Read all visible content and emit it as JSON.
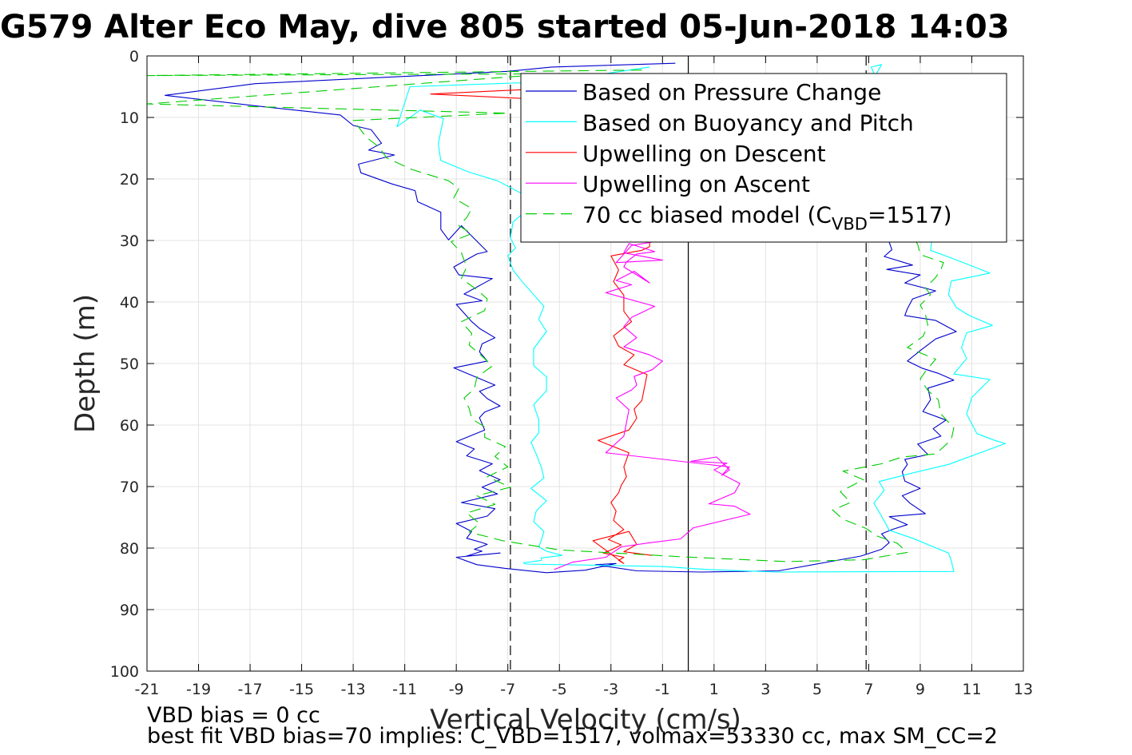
{
  "chart_data": {
    "type": "line",
    "title": "G579 Alter Eco May, dive 805 started 05-Jun-2018 14:03",
    "xlabel": "Vertical Velocity (cm/s)",
    "ylabel": "Depth (m)",
    "xlim": [
      -21,
      13
    ],
    "ylim": [
      0,
      100
    ],
    "y_reversed": true,
    "grid": true,
    "x_ticks": [
      -21,
      -19,
      -17,
      -15,
      -13,
      -11,
      -9,
      -7,
      -5,
      -3,
      -1,
      1,
      3,
      5,
      7,
      9,
      11,
      13
    ],
    "y_ticks": [
      0,
      10,
      20,
      30,
      40,
      50,
      60,
      70,
      80,
      90,
      100
    ],
    "legend_position": "top-right",
    "reference_lines": [
      {
        "x": -6.9,
        "style": "dashed",
        "color": "#000000"
      },
      {
        "x": 0,
        "style": "solid",
        "color": "#000000"
      },
      {
        "x": 6.9,
        "style": "dashed",
        "color": "#000000"
      }
    ],
    "series": [
      {
        "name": "Based on Pressure Change",
        "legend_sub": "",
        "legend_tail": "",
        "color": "#0000cc",
        "dash": "",
        "x": [
          -0.5,
          -5.3,
          -7.0,
          -16.8,
          -20.3,
          -16.8,
          -13.5,
          -13.0,
          -12.3,
          -11.9,
          -12.4,
          -11.4,
          -12.8,
          -12.7,
          -11.5,
          -10.6,
          -10.5,
          -9.6,
          -9.6,
          -9.3,
          -8.8,
          -7.8,
          -8.2,
          -9.1,
          -8.9,
          -7.6,
          -8.7,
          -8.0,
          -9.0,
          -8.4,
          -8.1,
          -7.5,
          -8.0,
          -8.1,
          -7.8,
          -9.1,
          -7.5,
          -8.1,
          -7.8,
          -7.3,
          -7.9,
          -8.1,
          -7.9,
          -9.0,
          -8.3,
          -8.6,
          -7.6,
          -8.1,
          -7.3,
          -8.0,
          -7.4,
          -8.8,
          -7.5,
          -7.8,
          -9.0,
          -8.4,
          -8.6,
          -8.0,
          -7.8,
          -8.3,
          -8.0,
          -8.6,
          -7.3,
          -9.0,
          -8.2,
          -7.1,
          -5.5,
          -4.0,
          -2.8,
          -3.6,
          -2.0,
          0.5,
          3.5,
          6.7,
          7.5,
          7.8,
          7.5,
          7.9,
          8.5,
          7.8,
          9.2,
          8.6,
          8.3,
          9.0,
          8.4,
          8.3,
          8.5,
          8.4,
          9.3,
          8.9,
          9.8,
          9.5,
          10.0,
          9.1,
          9.4,
          9.3,
          10.3,
          9.7,
          9.1,
          8.5,
          9.0,
          9.6,
          10.4,
          9.6,
          8.4,
          8.5,
          8.7,
          9.6,
          8.4,
          9.0,
          7.7,
          8.7,
          7.6,
          7.9,
          7.8,
          7.6,
          8.5,
          7.9,
          8.5,
          6.6
        ],
        "y": [
          1.2,
          1.8,
          2.5,
          4.5,
          6.4,
          8.1,
          9.6,
          11.3,
          12.0,
          14.2,
          15.3,
          16.1,
          17.6,
          19.0,
          20.8,
          21.9,
          23.7,
          25.4,
          28.2,
          29.9,
          27.6,
          31.8,
          32.2,
          34.3,
          35.6,
          36.2,
          38.7,
          39.8,
          40.4,
          43.2,
          44.3,
          45.8,
          46.8,
          48.1,
          49.6,
          50.7,
          53.5,
          54.5,
          55.7,
          56.9,
          57.9,
          58.8,
          60.8,
          62.7,
          63.9,
          65.0,
          66.3,
          67.4,
          68.9,
          70.1,
          71.2,
          72.6,
          73.6,
          74.8,
          76.0,
          77.3,
          78.4,
          79.1,
          79.4,
          80.2,
          80.5,
          81.3,
          80.8,
          81.5,
          82.7,
          83.3,
          84.0,
          83.6,
          82.5,
          82.7,
          83.7,
          83.9,
          83.7,
          81.3,
          80.2,
          79.1,
          77.7,
          77.0,
          76.2,
          74.9,
          74.4,
          72.7,
          71.5,
          70.3,
          69.1,
          67.6,
          66.4,
          65.6,
          64.8,
          63.1,
          61.8,
          60.6,
          59.2,
          57.8,
          55.9,
          54.0,
          52.7,
          51.6,
          50.8,
          49.6,
          47.9,
          46.0,
          44.8,
          43.0,
          42.2,
          41.1,
          39.5,
          38.2,
          36.9,
          35.6,
          34.7,
          34.0,
          32.6,
          31.5,
          30.3,
          28.8,
          27.7,
          26.3,
          25.3,
          3.5
        ]
      },
      {
        "name": "Based on Buoyancy and Pitch",
        "legend_sub": "",
        "legend_tail": "",
        "color": "#00ffff",
        "dash": "",
        "x": [
          -1.5,
          -5.3,
          -10.8,
          -11.3,
          -10.4,
          -9.5,
          -9.7,
          -9.6,
          -8.5,
          -7.4,
          -6.4,
          -6.3,
          -6.8,
          -6.9,
          -6.7,
          -7.0,
          -6.8,
          -6.5,
          -6.0,
          -5.6,
          -5.8,
          -5.5,
          -6.0,
          -6.0,
          -5.5,
          -5.5,
          -6.0,
          -5.8,
          -5.8,
          -6.1,
          -5.9,
          -5.7,
          -5.6,
          -6.1,
          -5.5,
          -5.9,
          -6.0,
          -5.6,
          -5.7,
          -5.8,
          -5.5,
          -4.9,
          -5.7,
          -5.7,
          -6.4,
          -6.3,
          -3.4,
          -1.0,
          0.8,
          3.4,
          10.3,
          10.2,
          10.1,
          8.7,
          7.8,
          7.5,
          7.2,
          7.6,
          7.4,
          8.6,
          10.1,
          12.3,
          11.9,
          11.2,
          10.8,
          11.0,
          11.7,
          10.3,
          10.8,
          10.6,
          10.8,
          11.8,
          10.9,
          10.4,
          10.1,
          10.2,
          11.7,
          10.3,
          9.4,
          9.5,
          9.9,
          9.7,
          9.0,
          10.5,
          9.6,
          9.4,
          8.5,
          9.0,
          8.6,
          8.0,
          7.3,
          7.1,
          7.5,
          7.3
        ],
        "y": [
          1.8,
          4.2,
          5.0,
          11.5,
          8.8,
          10.2,
          14.3,
          17.0,
          18.9,
          20.3,
          22.5,
          25.2,
          27.0,
          29.6,
          31.2,
          32.5,
          34.8,
          36.4,
          38.8,
          40.7,
          42.8,
          44.8,
          47.6,
          50.3,
          52.2,
          54.4,
          56.7,
          59.1,
          61.3,
          62.8,
          64.7,
          66.9,
          68.6,
          70.3,
          72.3,
          74.0,
          75.7,
          77.3,
          78.7,
          79.8,
          80.5,
          81.2,
          81.6,
          82.0,
          82.4,
          82.6,
          82.8,
          83.0,
          83.5,
          83.9,
          83.8,
          82.0,
          80.8,
          78.4,
          77.1,
          74.8,
          72.7,
          70.6,
          69.2,
          67.9,
          66.4,
          63.0,
          62.5,
          61.4,
          58.2,
          55.5,
          52.6,
          51.7,
          49.2,
          47.4,
          45.0,
          43.8,
          42.2,
          40.9,
          38.8,
          36.6,
          35.3,
          33.0,
          31.6,
          28.3,
          26.9,
          24.0,
          21.7,
          19.8,
          17.5,
          14.9,
          12.3,
          9.8,
          7.2,
          5.1,
          3.9,
          1.8,
          1.4,
          2.9
        ]
      },
      {
        "name": "Upwelling on Descent",
        "legend_sub": "",
        "legend_tail": "",
        "color": "#ff0000",
        "dash": "",
        "x": [
          -1.5,
          -10.0,
          -1.5,
          -1.5,
          -1.8,
          -3.0,
          -2.7,
          -2.9,
          -2.5,
          -2.5,
          -2.2,
          -2.9,
          -2.7,
          -2.1,
          -2.5,
          -1.6,
          -1.7,
          -1.8,
          -2.1,
          -2.0,
          -2.3,
          -3.5,
          -2.3,
          -2.5,
          -2.4,
          -2.6,
          -2.7,
          -3.0,
          -2.8,
          -2.9,
          -2.5,
          -3.1,
          -2.6,
          -3.0,
          -3.3,
          -2.5,
          -2.7,
          -2.5,
          -3.7,
          -2.3,
          -2.0,
          -2.5,
          -1.4
        ],
        "y": [
          4.5,
          6.2,
          7.9,
          31.0,
          31.6,
          32.5,
          34.8,
          36.7,
          38.9,
          41.5,
          43.2,
          45.5,
          47.2,
          48.6,
          50.2,
          51.8,
          53.9,
          56.0,
          57.4,
          58.9,
          60.8,
          62.5,
          64.5,
          66.8,
          68.4,
          69.8,
          71.0,
          72.6,
          74.0,
          75.5,
          77.0,
          78.6,
          79.5,
          80.3,
          80.8,
          81.5,
          82.0,
          82.5,
          78.8,
          77.3,
          79.4,
          80.6,
          81.2
        ]
      },
      {
        "name": "Upwelling on Ascent",
        "legend_sub": "",
        "legend_tail": "",
        "color": "#ff00ff",
        "dash": "",
        "x": [
          -5.2,
          -4.5,
          -3.2,
          -2.6,
          -1.6,
          -0.3,
          0.2,
          2.4,
          1.8,
          0.8,
          1.8,
          2.0,
          1.0,
          1.5,
          0.1,
          1.1,
          1.6,
          1.3,
          1.6,
          -3.2,
          -2.5,
          -2.3,
          -2.8,
          -2.2,
          -2.0,
          -2.1,
          -1.4,
          -1.0,
          -1.5,
          -2.5,
          -2.0,
          -2.5,
          -2.2,
          -1.3,
          -3.2,
          -2.2,
          -2.8,
          -2.1,
          -1.5,
          -2.5,
          -2.4,
          -2.0,
          -1.3,
          -2.3,
          -2.5,
          -1.0,
          -2.8,
          -2.2,
          -1.3,
          -1.2
        ],
        "y": [
          83.5,
          82.3,
          81.5,
          79.8,
          79.2,
          78.5,
          76.7,
          74.5,
          73.2,
          72.8,
          71.0,
          69.5,
          67.3,
          66.2,
          65.9,
          65.2,
          67.3,
          68.2,
          66.8,
          64.5,
          61.8,
          57.5,
          55.6,
          54.3,
          53.5,
          52.1,
          51.0,
          49.6,
          48.6,
          47.3,
          45.8,
          44.0,
          42.5,
          40.7,
          38.5,
          37.2,
          36.5,
          35.0,
          36.9,
          34.3,
          33.5,
          32.2,
          31.8,
          30.5,
          32.0,
          33.2,
          33.6,
          30.8,
          30.2,
          29.4
        ]
      },
      {
        "name": "70 cc biased model (C",
        "legend_sub": "VBD",
        "legend_tail": "=1517)",
        "color": "#00cc00",
        "dash": "14,8",
        "x": [
          -1.8,
          -21.0,
          -5.3,
          -21.0,
          -7.0,
          -13.0,
          -12.8,
          -12.5,
          -12.0,
          -11.7,
          -10.7,
          -9.3,
          -8.9,
          -9.1,
          -8.4,
          -8.6,
          -8.9,
          -8.4,
          -9.2,
          -8.8,
          -8.6,
          -8.8,
          -8.2,
          -7.8,
          -7.9,
          -8.8,
          -8.4,
          -8.5,
          -8.0,
          -7.6,
          -8.2,
          -8.3,
          -8.7,
          -8.5,
          -8.4,
          -7.9,
          -7.9,
          -7.1,
          -7.5,
          -7.0,
          -7.8,
          -6.9,
          -8.2,
          -7.5,
          -8.6,
          -8.1,
          -8.5,
          -7.2,
          -5.0,
          -0.3,
          3.8,
          6.8,
          8.5,
          8.1,
          7.3,
          6.9,
          6.0,
          5.6,
          6.3,
          5.9,
          6.8,
          6.0,
          7.5,
          8.3,
          9.6,
          10.2,
          10.3,
          9.8,
          9.7,
          9.3,
          9.0,
          9.2,
          9.6,
          8.5,
          9.1,
          9.3,
          9.2,
          9.0,
          9.4,
          9.2,
          9.6,
          9.8,
          9.9,
          9.0,
          8.9,
          8.6,
          8.3,
          8.4,
          8.1,
          7.8,
          8.0,
          7.7,
          7.6,
          7.3
        ],
        "y": [
          2.3,
          3.2,
          2.9,
          7.8,
          9.3,
          10.5,
          11.5,
          13.2,
          14.8,
          16.6,
          18.5,
          20.3,
          21.5,
          23.1,
          24.8,
          26.3,
          27.6,
          28.9,
          30.2,
          32.0,
          34.3,
          36.2,
          38.0,
          39.5,
          41.4,
          43.2,
          45.1,
          47.0,
          48.8,
          50.4,
          52.2,
          54.1,
          55.6,
          57.3,
          59.0,
          60.3,
          62.0,
          63.5,
          65.1,
          66.8,
          68.4,
          70.1,
          71.5,
          72.9,
          74.3,
          76.0,
          77.4,
          78.8,
          80.3,
          81.4,
          82.2,
          81.9,
          80.7,
          79.2,
          78.0,
          76.8,
          75.3,
          73.8,
          72.6,
          70.8,
          68.9,
          67.5,
          66.3,
          65.2,
          64.7,
          62.4,
          60.5,
          58.2,
          55.9,
          54.4,
          52.5,
          51.3,
          49.3,
          47.4,
          45.6,
          43.9,
          42.0,
          40.5,
          38.8,
          37.7,
          36.0,
          34.7,
          33.6,
          32.3,
          30.6,
          28.9,
          27.7,
          25.7,
          24.2,
          22.6,
          20.5,
          19.1,
          17.0,
          15.8
        ]
      }
    ],
    "annotations": [
      "VBD bias = 0 cc",
      "best fit VBD bias=70 implies: C_VBD=1517, volmax=53330 cc, max SM_CC=2"
    ]
  }
}
